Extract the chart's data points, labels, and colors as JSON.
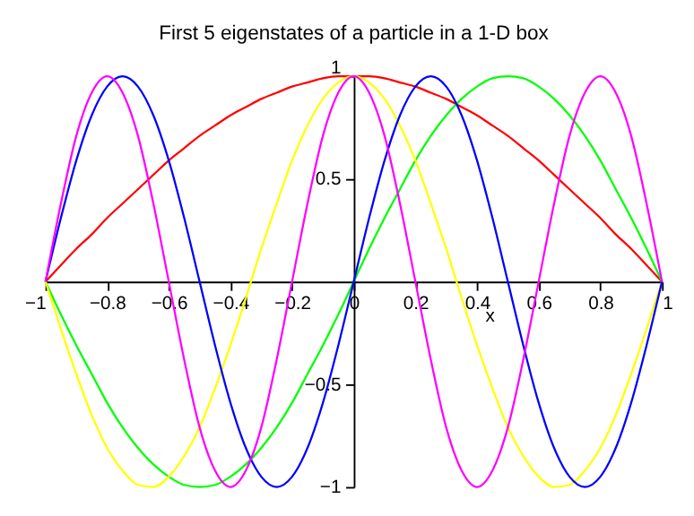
{
  "chart_data": {
    "type": "line",
    "title": "First 5 eigenstates of a particle in a 1-D box",
    "xlabel": "x",
    "x": [
      -1,
      -0.95,
      -0.9,
      -0.85,
      -0.8,
      -0.75,
      -0.7,
      -0.65,
      -0.6,
      -0.55,
      -0.5,
      -0.45,
      -0.4,
      -0.35,
      -0.3,
      -0.25,
      -0.2,
      -0.15,
      -0.1,
      -0.05,
      0,
      0.05,
      0.1,
      0.15,
      0.2,
      0.25,
      0.3,
      0.35,
      0.4,
      0.45,
      0.5,
      0.55,
      0.6,
      0.65,
      0.7,
      0.75,
      0.8,
      0.85,
      0.9,
      0.95,
      1
    ],
    "series": [
      {
        "color": "#ff0000",
        "values": [
          0,
          0.08,
          0.16,
          0.23,
          0.31,
          0.38,
          0.45,
          0.52,
          0.59,
          0.65,
          0.71,
          0.76,
          0.81,
          0.85,
          0.89,
          0.92,
          0.95,
          0.97,
          0.99,
          1,
          1,
          1,
          0.99,
          0.97,
          0.95,
          0.92,
          0.89,
          0.85,
          0.81,
          0.76,
          0.71,
          0.65,
          0.59,
          0.52,
          0.45,
          0.38,
          0.31,
          0.23,
          0.16,
          0.08,
          0
        ]
      },
      {
        "color": "#00ff00",
        "values": [
          0,
          -0.16,
          -0.31,
          -0.45,
          -0.59,
          -0.71,
          -0.81,
          -0.89,
          -0.95,
          -0.99,
          -1,
          -0.99,
          -0.95,
          -0.89,
          -0.81,
          -0.71,
          -0.59,
          -0.45,
          -0.31,
          -0.16,
          0,
          0.16,
          0.31,
          0.45,
          0.59,
          0.71,
          0.81,
          0.89,
          0.95,
          0.99,
          1,
          0.99,
          0.95,
          0.89,
          0.81,
          0.71,
          0.59,
          0.45,
          0.31,
          0.16,
          0
        ]
      },
      {
        "color": "#ffff00",
        "values": [
          0,
          -0.23,
          -0.45,
          -0.65,
          -0.81,
          -0.92,
          -0.99,
          -1,
          -0.95,
          -0.85,
          -0.71,
          -0.52,
          -0.31,
          -0.08,
          0.16,
          0.38,
          0.59,
          0.76,
          0.89,
          0.97,
          1,
          0.97,
          0.89,
          0.76,
          0.59,
          0.38,
          0.16,
          -0.08,
          -0.31,
          -0.52,
          -0.71,
          -0.85,
          -0.95,
          -1,
          -0.99,
          -0.92,
          -0.81,
          -0.65,
          -0.45,
          -0.23,
          0
        ]
      },
      {
        "color": "#0000ff",
        "values": [
          0,
          0.31,
          0.59,
          0.81,
          0.95,
          1,
          0.95,
          0.81,
          0.59,
          0.31,
          0,
          -0.31,
          -0.59,
          -0.81,
          -0.95,
          -1,
          -0.95,
          -0.81,
          -0.59,
          -0.31,
          0,
          0.31,
          0.59,
          0.81,
          0.95,
          1,
          0.95,
          0.81,
          0.59,
          0.31,
          0,
          -0.31,
          -0.59,
          -0.81,
          -0.95,
          -1,
          -0.95,
          -0.81,
          -0.59,
          -0.31,
          0
        ]
      },
      {
        "color": "#ff00ff",
        "values": [
          0,
          0.38,
          0.71,
          0.92,
          1,
          0.92,
          0.71,
          0.38,
          0,
          -0.38,
          -0.71,
          -0.92,
          -1,
          -0.92,
          -0.71,
          -0.38,
          0,
          0.38,
          0.71,
          0.92,
          1,
          0.92,
          0.71,
          0.38,
          0,
          -0.38,
          -0.71,
          -0.92,
          -1,
          -0.92,
          -0.71,
          -0.38,
          0,
          0.38,
          0.71,
          0.92,
          1,
          0.92,
          0.71,
          0.38,
          0
        ]
      }
    ],
    "xlim": [
      -1,
      1
    ],
    "ylim": [
      -1,
      1
    ],
    "xticks": [
      -1,
      -0.8,
      -0.6,
      -0.4,
      -0.2,
      0,
      0.2,
      0.4,
      0.6,
      0.8,
      1
    ],
    "yticks": [
      -1,
      -0.5,
      0.5,
      1
    ],
    "grid": false,
    "legend": false,
    "marker": "none",
    "line_style": "solid"
  }
}
